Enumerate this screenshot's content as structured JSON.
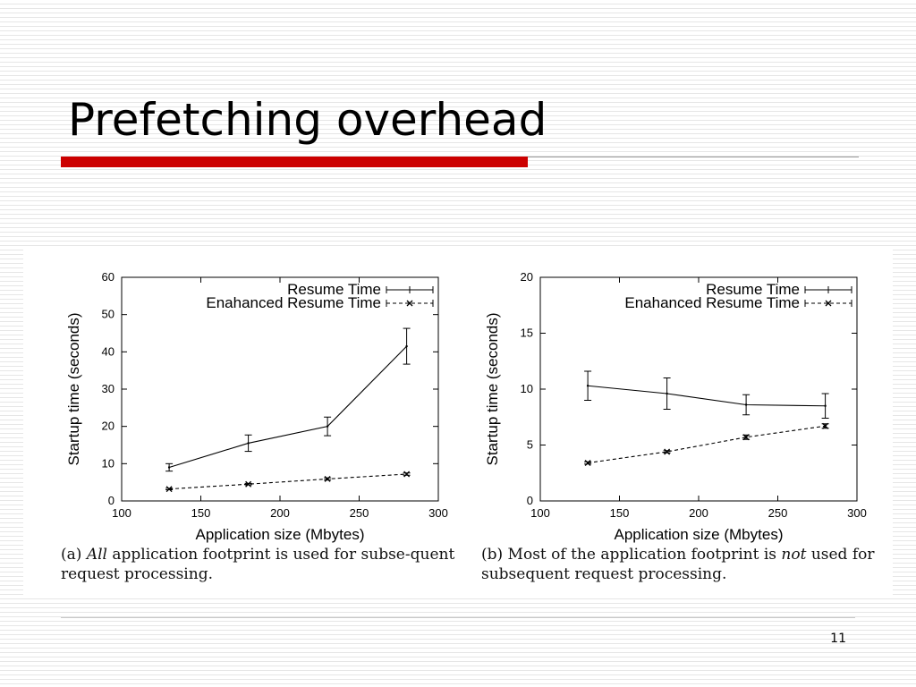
{
  "slide": {
    "title": "Prefetching overhead",
    "page_number": "11",
    "colors": {
      "accent": "#cc0000"
    }
  },
  "captions": {
    "a": {
      "prefix": "(a) ",
      "emph": "All",
      "suffix": " application footprint is used for subse-quent request processing."
    },
    "b": {
      "prefix": "(b) Most of the application footprint is ",
      "emph": "not",
      "suffix": " used for subsequent request processing."
    }
  },
  "chart_data": [
    {
      "type": "line",
      "xlabel": "Application size (Mbytes)",
      "ylabel": "Startup time (seconds)",
      "xlim": [
        100,
        300
      ],
      "ylim": [
        0,
        60
      ],
      "xticks": [
        100,
        150,
        200,
        250,
        300
      ],
      "yticks": [
        0,
        10,
        20,
        30,
        40,
        50,
        60
      ],
      "grid": false,
      "legend_position": "top-right",
      "series": [
        {
          "name": "Resume Time",
          "style": "solid-errorbars",
          "x": [
            130,
            180,
            230,
            280
          ],
          "y": [
            9,
            15.5,
            20,
            41.5
          ],
          "err": [
            1,
            2.2,
            2.5,
            4.8
          ]
        },
        {
          "name": "Enahanced Resume Time",
          "style": "dashed-x",
          "x": [
            130,
            180,
            230,
            280
          ],
          "y": [
            3.2,
            4.5,
            5.9,
            7.2
          ],
          "err": [
            0.2,
            0.2,
            0.3,
            0.3
          ]
        }
      ]
    },
    {
      "type": "line",
      "xlabel": "Application size (Mbytes)",
      "ylabel": "Startup time (seconds)",
      "xlim": [
        100,
        300
      ],
      "ylim": [
        0,
        20
      ],
      "xticks": [
        100,
        150,
        200,
        250,
        300
      ],
      "yticks": [
        0,
        5,
        10,
        15,
        20
      ],
      "grid": false,
      "legend_position": "top-right",
      "series": [
        {
          "name": "Resume Time",
          "style": "solid-errorbars",
          "x": [
            130,
            180,
            230,
            280
          ],
          "y": [
            10.3,
            9.6,
            8.6,
            8.5
          ],
          "err": [
            1.3,
            1.4,
            0.9,
            1.1
          ]
        },
        {
          "name": "Enahanced Resume Time",
          "style": "dashed-x",
          "x": [
            130,
            180,
            230,
            280
          ],
          "y": [
            3.4,
            4.4,
            5.7,
            6.7
          ],
          "err": [
            0.1,
            0.1,
            0.2,
            0.2
          ]
        }
      ]
    }
  ]
}
